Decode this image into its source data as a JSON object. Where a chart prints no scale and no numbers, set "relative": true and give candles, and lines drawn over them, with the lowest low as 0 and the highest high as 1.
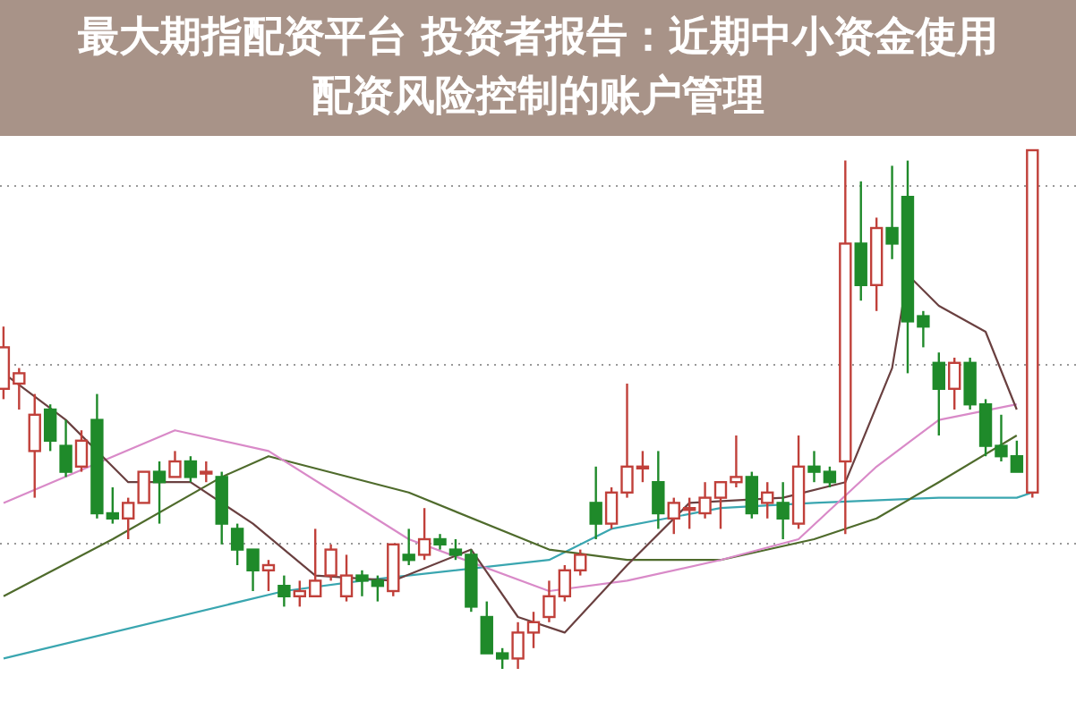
{
  "chart_data": {
    "type": "candlestick",
    "title": "最大期指配资平台 投资者报告：近期中小资金使用配资风险控制的账户管理",
    "relative": true,
    "grid": "y",
    "categories": [
      null,
      null,
      null,
      null,
      null,
      null,
      null,
      null,
      null,
      null,
      null,
      null,
      null,
      null,
      null,
      null,
      null,
      null,
      null,
      null,
      null,
      null,
      null,
      null,
      null,
      null,
      null,
      null,
      null,
      null,
      null,
      null,
      null,
      null,
      null,
      null,
      null,
      null,
      null,
      null,
      null,
      null,
      null,
      null,
      null,
      null,
      null,
      null,
      null,
      null,
      null,
      null,
      null,
      null,
      null,
      null,
      null,
      null,
      null,
      null,
      null,
      null,
      null,
      null,
      null,
      null,
      null
    ],
    "ohlc": [
      [
        0.54,
        0.66,
        0.52,
        0.62
      ],
      [
        0.55,
        0.58,
        0.5,
        0.57
      ],
      [
        0.42,
        0.53,
        0.33,
        0.49
      ],
      [
        0.5,
        0.51,
        0.42,
        0.44
      ],
      [
        0.43,
        0.48,
        0.37,
        0.38
      ],
      [
        0.39,
        0.46,
        0.38,
        0.44
      ],
      [
        0.48,
        0.53,
        0.29,
        0.3
      ],
      [
        0.3,
        0.35,
        0.28,
        0.29
      ],
      [
        0.29,
        0.33,
        0.25,
        0.32
      ],
      [
        0.32,
        0.38,
        0.32,
        0.38
      ],
      [
        0.38,
        0.4,
        0.28,
        0.36
      ],
      [
        0.37,
        0.42,
        0.37,
        0.4
      ],
      [
        0.4,
        0.41,
        0.36,
        0.37
      ],
      [
        0.38,
        0.4,
        0.36,
        0.38
      ],
      [
        0.37,
        0.38,
        0.24,
        0.28
      ],
      [
        0.27,
        0.28,
        0.2,
        0.23
      ],
      [
        0.23,
        0.23,
        0.15,
        0.19
      ],
      [
        0.19,
        0.21,
        0.15,
        0.2
      ],
      [
        0.16,
        0.18,
        0.12,
        0.14
      ],
      [
        0.14,
        0.17,
        0.12,
        0.15
      ],
      [
        0.14,
        0.27,
        0.14,
        0.17
      ],
      [
        0.18,
        0.24,
        0.17,
        0.23
      ],
      [
        0.14,
        0.22,
        0.13,
        0.18
      ],
      [
        0.18,
        0.19,
        0.14,
        0.17
      ],
      [
        0.17,
        0.18,
        0.13,
        0.16
      ],
      [
        0.15,
        0.24,
        0.14,
        0.24
      ],
      [
        0.22,
        0.27,
        0.2,
        0.21
      ],
      [
        0.22,
        0.31,
        0.21,
        0.25
      ],
      [
        0.25,
        0.26,
        0.23,
        0.24
      ],
      [
        0.23,
        0.25,
        0.21,
        0.22
      ],
      [
        0.22,
        0.23,
        0.11,
        0.12
      ],
      [
        0.1,
        0.13,
        0.03,
        0.03
      ],
      [
        0.03,
        0.04,
        0,
        0.02
      ],
      [
        0.02,
        0.09,
        0,
        0.07
      ],
      [
        0.07,
        0.11,
        0.04,
        0.09
      ],
      [
        0.1,
        0.17,
        0.09,
        0.14
      ],
      [
        0.14,
        0.2,
        0.13,
        0.19
      ],
      [
        0.19,
        0.23,
        0.18,
        0.22
      ],
      [
        0.32,
        0.39,
        0.25,
        0.28
      ],
      [
        0.28,
        0.35,
        0.27,
        0.34
      ],
      [
        0.34,
        0.55,
        0.33,
        0.39
      ],
      [
        0.39,
        0.42,
        0.36,
        0.39
      ],
      [
        0.36,
        0.42,
        0.27,
        0.3
      ],
      [
        0.29,
        0.33,
        0.26,
        0.32
      ],
      [
        0.31,
        0.33,
        0.27,
        0.31
      ],
      [
        0.3,
        0.36,
        0.29,
        0.33
      ],
      [
        0.33,
        0.36,
        0.27,
        0.36
      ],
      [
        0.36,
        0.45,
        0.35,
        0.37
      ],
      [
        0.37,
        0.38,
        0.29,
        0.3
      ],
      [
        0.32,
        0.36,
        0.29,
        0.34
      ],
      [
        0.32,
        0.36,
        0.25,
        0.29
      ],
      [
        0.28,
        0.45,
        0.27,
        0.39
      ],
      [
        0.39,
        0.42,
        0.36,
        0.38
      ],
      [
        0.38,
        0.39,
        0.35,
        0.36
      ],
      [
        0.4,
        0.98,
        0.26,
        0.82
      ],
      [
        0.82,
        0.94,
        0.71,
        0.74
      ],
      [
        0.74,
        0.87,
        0.69,
        0.85
      ],
      [
        0.85,
        0.97,
        0.79,
        0.82
      ],
      [
        0.91,
        0.98,
        0.57,
        0.67
      ],
      [
        0.68,
        0.69,
        0.62,
        0.66
      ],
      [
        0.59,
        0.61,
        0.45,
        0.54
      ],
      [
        0.54,
        0.6,
        0.5,
        0.59
      ],
      [
        0.59,
        0.6,
        0.5,
        0.51
      ],
      [
        0.51,
        0.52,
        0.41,
        0.43
      ],
      [
        0.43,
        0.49,
        0.4,
        0.41
      ],
      [
        0.41,
        0.44,
        0.38,
        0.38
      ],
      [
        0.34,
        1.0,
        0.33,
        1.0
      ]
    ],
    "colors": [
      "#c0403a",
      "#c0403a",
      "#c0403a",
      "#1f8a2a",
      "#1f8a2a",
      "#c0403a",
      "#1f8a2a",
      "#1f8a2a",
      "#c0403a",
      "#c0403a",
      "#1f8a2a",
      "#c0403a",
      "#1f8a2a",
      "#c0403a",
      "#1f8a2a",
      "#1f8a2a",
      "#1f8a2a",
      "#c0403a",
      "#1f8a2a",
      "#c0403a",
      "#c0403a",
      "#c0403a",
      "#c0403a",
      "#1f8a2a",
      "#1f8a2a",
      "#c0403a",
      "#1f8a2a",
      "#c0403a",
      "#1f8a2a",
      "#1f8a2a",
      "#1f8a2a",
      "#1f8a2a",
      "#1f8a2a",
      "#c0403a",
      "#c0403a",
      "#c0403a",
      "#c0403a",
      "#c0403a",
      "#1f8a2a",
      "#c0403a",
      "#c0403a",
      "#c0403a",
      "#1f8a2a",
      "#c0403a",
      "#c0403a",
      "#c0403a",
      "#c0403a",
      "#c0403a",
      "#1f8a2a",
      "#c0403a",
      "#1f8a2a",
      "#c0403a",
      "#1f8a2a",
      "#1f8a2a",
      "#c0403a",
      "#1f8a2a",
      "#c0403a",
      "#1f8a2a",
      "#1f8a2a",
      "#1f8a2a",
      "#1f8a2a",
      "#c0403a",
      "#1f8a2a",
      "#1f8a2a",
      "#1f8a2a",
      "#1f8a2a",
      "#c0403a"
    ],
    "series": [
      {
        "type": "line",
        "color": "#3aa6b0",
        "values": [
          0.02,
          null,
          null,
          null,
          null,
          null,
          null,
          null,
          null,
          null,
          null,
          null,
          null,
          null,
          null,
          null,
          null,
          null,
          0.15,
          null,
          null,
          null,
          null,
          0.17,
          null,
          null,
          null,
          null,
          null,
          null,
          null,
          null,
          null,
          null,
          null,
          0.21,
          null,
          null,
          null,
          0.27,
          null,
          null,
          null,
          null,
          null,
          null,
          0.31,
          null,
          null,
          null,
          null,
          null,
          0.32,
          null,
          null,
          null,
          null,
          null,
          null,
          null,
          0.33,
          null,
          null,
          null,
          null,
          0.33,
          0.34
        ]
      },
      {
        "type": "line",
        "color": "#4f6b2c",
        "values": [
          0.14,
          null,
          null,
          null,
          null,
          null,
          null,
          0.25,
          null,
          null,
          null,
          null,
          null,
          null,
          0.37,
          null,
          null,
          0.41,
          null,
          null,
          null,
          null,
          null,
          null,
          null,
          null,
          0.34,
          null,
          null,
          null,
          null,
          null,
          null,
          null,
          null,
          0.23,
          null,
          null,
          null,
          null,
          0.21,
          null,
          null,
          null,
          null,
          null,
          0.21,
          null,
          null,
          null,
          null,
          null,
          0.25,
          null,
          null,
          null,
          0.29,
          null,
          null,
          null,
          0.36,
          null,
          null,
          null,
          null,
          0.45,
          null
        ]
      },
      {
        "type": "line",
        "color": "#d98ac8",
        "values": [
          0.32,
          null,
          null,
          null,
          null,
          null,
          null,
          null,
          null,
          null,
          null,
          0.46,
          null,
          null,
          null,
          null,
          null,
          0.42,
          null,
          null,
          null,
          null,
          null,
          null,
          null,
          null,
          0.25,
          null,
          null,
          null,
          null,
          null,
          null,
          null,
          null,
          0.15,
          null,
          null,
          null,
          null,
          0.17,
          null,
          null,
          null,
          null,
          null,
          0.21,
          null,
          null,
          null,
          null,
          0.25,
          null,
          null,
          null,
          null,
          0.39,
          null,
          null,
          null,
          0.48,
          null,
          null,
          null,
          null,
          0.51,
          null
        ]
      },
      {
        "type": "line",
        "color": "#6a4040",
        "values": [
          0.57,
          null,
          null,
          null,
          0.48,
          null,
          null,
          null,
          0.36,
          null,
          null,
          null,
          0.36,
          null,
          null,
          null,
          0.28,
          null,
          null,
          null,
          0.18,
          null,
          null,
          null,
          null,
          0.17,
          null,
          null,
          null,
          null,
          0.23,
          null,
          null,
          0.1,
          null,
          null,
          0.07,
          null,
          null,
          null,
          0.2,
          null,
          null,
          null,
          0.32,
          null,
          null,
          null,
          null,
          null,
          0.33,
          null,
          null,
          null,
          0.36,
          null,
          null,
          0.58,
          0.76,
          null,
          0.7,
          null,
          null,
          0.65,
          null,
          0.5,
          null
        ]
      }
    ]
  }
}
